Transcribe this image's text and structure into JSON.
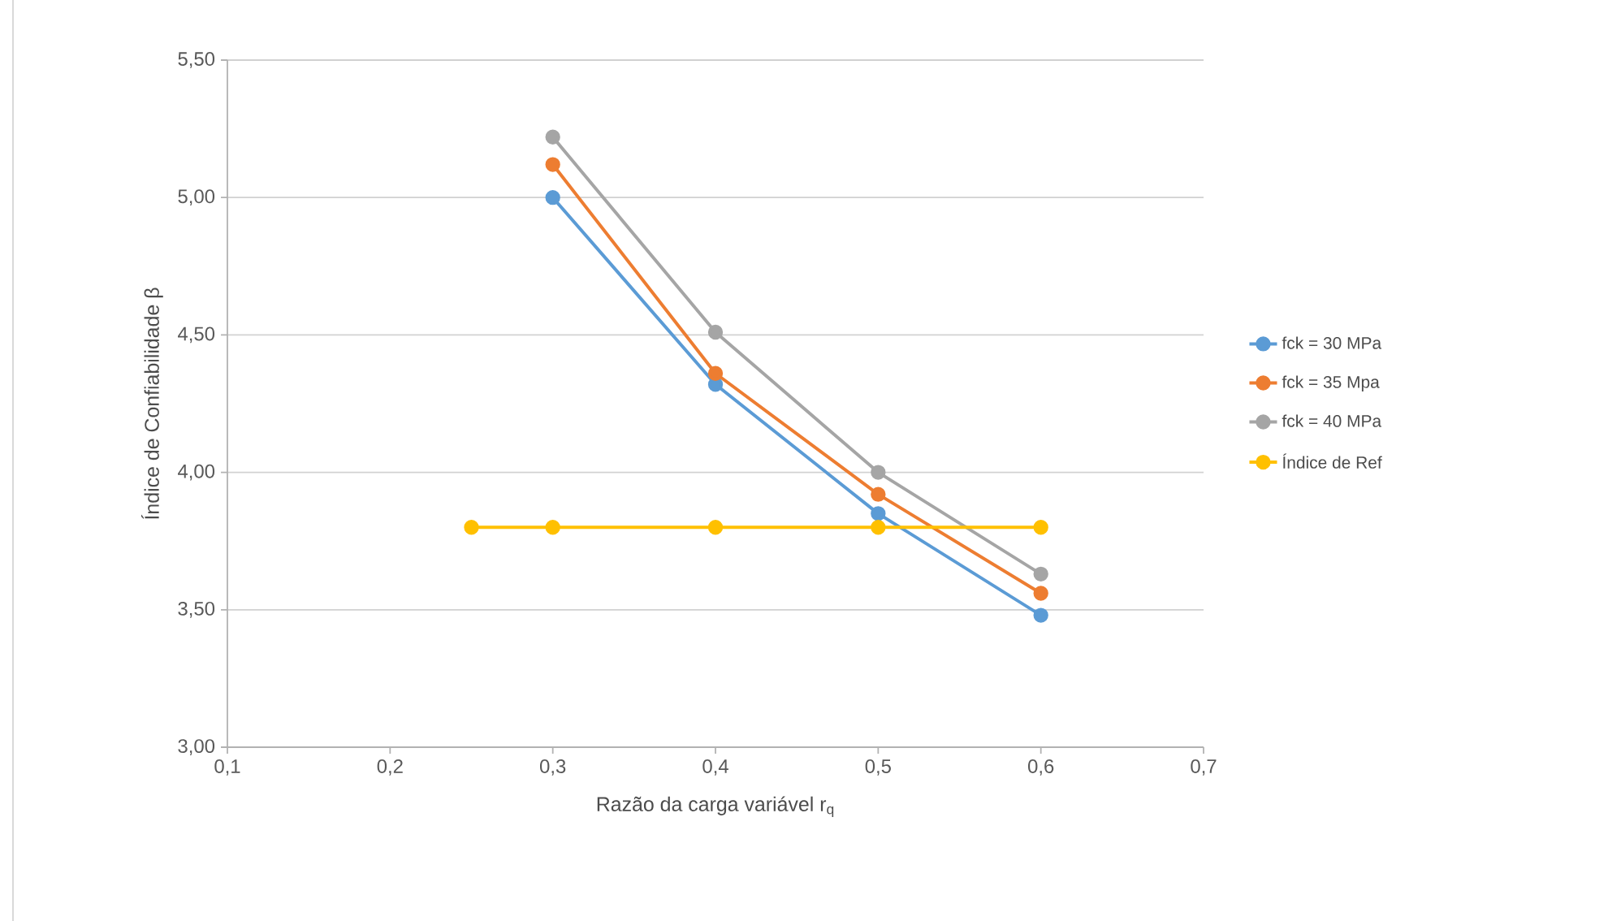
{
  "chart_data": {
    "type": "line",
    "xlabel": "Razão da carga variável r$_{q}$",
    "ylabel": "Índice de Confiabilidade β",
    "xlim": [
      0.1,
      0.7
    ],
    "ylim": [
      3.0,
      5.5
    ],
    "xticks": [
      {
        "value": 0.1,
        "label": "0,1"
      },
      {
        "value": 0.2,
        "label": "0,2"
      },
      {
        "value": 0.3,
        "label": "0,3"
      },
      {
        "value": 0.4,
        "label": "0,4"
      },
      {
        "value": 0.5,
        "label": "0,5"
      },
      {
        "value": 0.6,
        "label": "0,6"
      },
      {
        "value": 0.7,
        "label": "0,7"
      }
    ],
    "yticks": [
      {
        "value": 3.0,
        "label": "3,00"
      },
      {
        "value": 3.5,
        "label": "3,50"
      },
      {
        "value": 4.0,
        "label": "4,00"
      },
      {
        "value": 4.5,
        "label": "4,50"
      },
      {
        "value": 5.0,
        "label": "5,00"
      },
      {
        "value": 5.5,
        "label": "5,50"
      }
    ],
    "grid": "y",
    "legend": "right",
    "marker": "circle",
    "line_style": "solid",
    "series": [
      {
        "name": "fck = 30 MPa",
        "color": "#5b9bd5",
        "x": [
          0.3,
          0.4,
          0.5,
          0.6
        ],
        "values": [
          5.0,
          4.32,
          3.85,
          3.48
        ]
      },
      {
        "name": "fck = 35 Mpa",
        "color": "#ed7d31",
        "x": [
          0.3,
          0.4,
          0.5,
          0.6
        ],
        "values": [
          5.12,
          4.36,
          3.92,
          3.56
        ]
      },
      {
        "name": "fck = 40 MPa",
        "color": "#a5a5a5",
        "x": [
          0.3,
          0.4,
          0.5,
          0.6
        ],
        "values": [
          5.22,
          4.51,
          4.0,
          3.63
        ]
      },
      {
        "name": "Índice de Ref",
        "color": "#ffc000",
        "x": [
          0.25,
          0.3,
          0.4,
          0.5,
          0.6
        ],
        "values": [
          3.8,
          3.8,
          3.8,
          3.8,
          3.8
        ]
      }
    ]
  }
}
